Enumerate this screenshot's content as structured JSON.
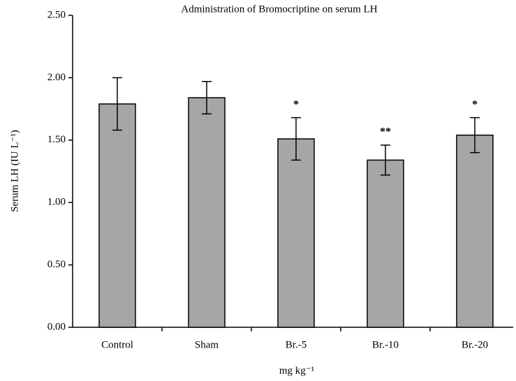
{
  "chart_data": {
    "type": "bar",
    "title": "Administration of Bromocriptine on serum LH",
    "x_label": "mg kg⁻¹",
    "y_label": "Serum LH (IU L⁻¹)",
    "categories": [
      "Control",
      "Sham",
      "Br.-5",
      "Br.-10",
      "Br.-20"
    ],
    "values": [
      1.79,
      1.84,
      1.51,
      1.34,
      1.54
    ],
    "errors": [
      0.21,
      0.13,
      0.17,
      0.12,
      0.14
    ],
    "color": "#a6a6a6",
    "annotations": [
      {
        "index": 2,
        "text": "*"
      },
      {
        "index": 3,
        "text": "**"
      },
      {
        "index": 4,
        "text": "*"
      }
    ],
    "ylim": [
      0,
      2.5
    ],
    "yticks": [
      {
        "value": 0,
        "label": "0.00"
      },
      {
        "value": 0.5,
        "label": "0.50"
      },
      {
        "value": 1,
        "label": "1.00"
      },
      {
        "value": 1.5,
        "label": "1.50"
      },
      {
        "value": 2,
        "label": "2.00"
      },
      {
        "value": 2.5,
        "label": "2.50"
      }
    ],
    "grid": false
  }
}
